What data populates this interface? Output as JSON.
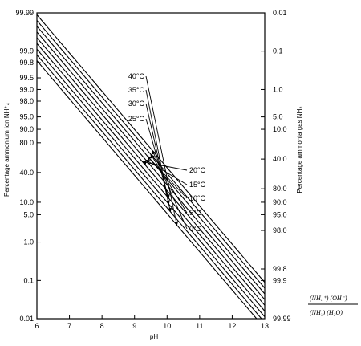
{
  "chart_data": {
    "type": "line",
    "title": "",
    "xlabel": "pH",
    "ylabel_left": "Percentage ammonium ion NH⁺₄",
    "ylabel_right": "Percentage ammonia gas NH₃",
    "xlim": [
      6,
      13
    ],
    "x_ticks": [
      "6",
      "7",
      "8",
      "9",
      "10",
      "11",
      "12",
      "13"
    ],
    "ylim_ammonia_percent": [
      0.01,
      99.99
    ],
    "left_ticks": [
      "0.01",
      "0.1",
      "1.0",
      "5.0",
      "10.0",
      "40.0",
      "80.0",
      "90.0",
      "95.0",
      "98.0",
      "99.0",
      "99.5",
      "99.8",
      "99.9",
      "99.99"
    ],
    "left_tick_values": [
      0.01,
      0.1,
      1.0,
      5.0,
      10.0,
      40.0,
      80.0,
      90.0,
      95.0,
      98.0,
      99.0,
      99.5,
      99.8,
      99.9,
      99.99
    ],
    "right_ticks": [
      "99.99",
      "99.9",
      "99.8",
      "98.0",
      "95.0",
      "90.0",
      "80.0",
      "40.0",
      "10.0",
      "5.0",
      "1.0",
      "0.1",
      "0.01"
    ],
    "right_tick_values": [
      99.99,
      99.9,
      99.8,
      98.0,
      95.0,
      90.0,
      80.0,
      40.0,
      10.0,
      5.0,
      1.0,
      0.1,
      0.01
    ],
    "series": [
      {
        "name": "40°C",
        "pKa": 8.75
      },
      {
        "name": "35°C",
        "pKa": 8.9
      },
      {
        "name": "30°C",
        "pKa": 9.05
      },
      {
        "name": "25°C",
        "pKa": 9.2
      },
      {
        "name": "20°C",
        "pKa": 9.35
      },
      {
        "name": "15°C",
        "pKa": 9.5
      },
      {
        "name": "10°C",
        "pKa": 9.65
      },
      {
        "name": "5°C",
        "pKa": 9.8
      },
      {
        "name": "0°C",
        "pKa": 9.95
      }
    ],
    "formula": {
      "numerator_a": "NH₄⁺",
      "numerator_b": "OH⁻",
      "denominator_a": "NH₃",
      "denominator_b": "H₂O"
    }
  }
}
